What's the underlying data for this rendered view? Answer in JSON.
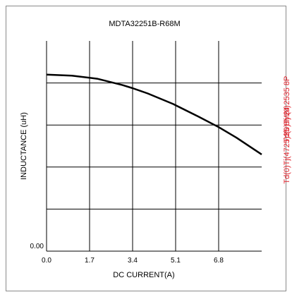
{
  "chart_data": {
    "type": "line",
    "title": "MDTA32251B-R68M",
    "xlabel": "DC CURRENT(A)",
    "ylabel": "INDUCTANCE (uH)",
    "x_ticks": [
      "0.0",
      "1.7",
      "3.4",
      "5.1",
      "6.8"
    ],
    "y_ticks": [
      "0.00"
    ],
    "xlim": [
      0,
      8.5
    ],
    "ylim": [
      0,
      1.0
    ],
    "grid": true,
    "series": [
      {
        "x": [
          0.0,
          1.0,
          2.0,
          3.0,
          3.4,
          4.0,
          5.0,
          6.0,
          6.8,
          7.5,
          8.5
        ],
        "y": [
          0.84,
          0.835,
          0.82,
          0.79,
          0.775,
          0.75,
          0.7,
          0.64,
          0.59,
          0.54,
          0.46
        ]
      }
    ]
  },
  "overlay_text": {
    "stamp_a": "Td(0)Tj 24 2535 8P",
    "stamp_b": "Td(0)Tj(4725)35 8M(0)"
  },
  "colors": {
    "line": "#000000",
    "grid": "#000000",
    "stamp": "#e0202a"
  }
}
